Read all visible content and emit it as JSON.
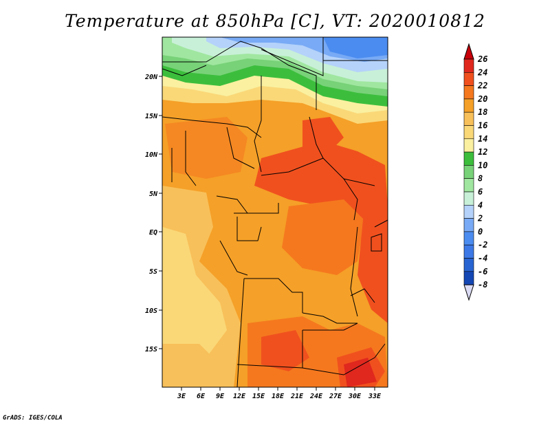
{
  "title": "Temperature at 850hPa [C], VT: 2020010812",
  "credit": "GrADS: IGES/COLA",
  "lat_labels": [
    "20N",
    "15N",
    "10N",
    "5N",
    "EQ",
    "5S",
    "10S",
    "15S"
  ],
  "lon_labels": [
    "3E",
    "6E",
    "9E",
    "12E",
    "15E",
    "18E",
    "21E",
    "24E",
    "27E",
    "30E",
    "33E"
  ],
  "colorbar": {
    "labels": [
      "26",
      "24",
      "22",
      "20",
      "18",
      "16",
      "14",
      "12",
      "10",
      "8",
      "6",
      "4",
      "2",
      "0",
      "-2",
      "-4",
      "-6",
      "-8"
    ],
    "colors": [
      "#e0281e",
      "#f0501e",
      "#f5781e",
      "#f5a028",
      "#f8c05a",
      "#fad878",
      "#faf0a0",
      "#3cbe3c",
      "#78d278",
      "#a0e6a0",
      "#c8f0d8",
      "#b4d2fa",
      "#78aaf5",
      "#4b8cf0",
      "#3c78e6",
      "#2864d2",
      "#1446b4",
      "#0a1e78"
    ],
    "over_color": "#c8000a",
    "under_color": "#dcdcf5"
  }
}
